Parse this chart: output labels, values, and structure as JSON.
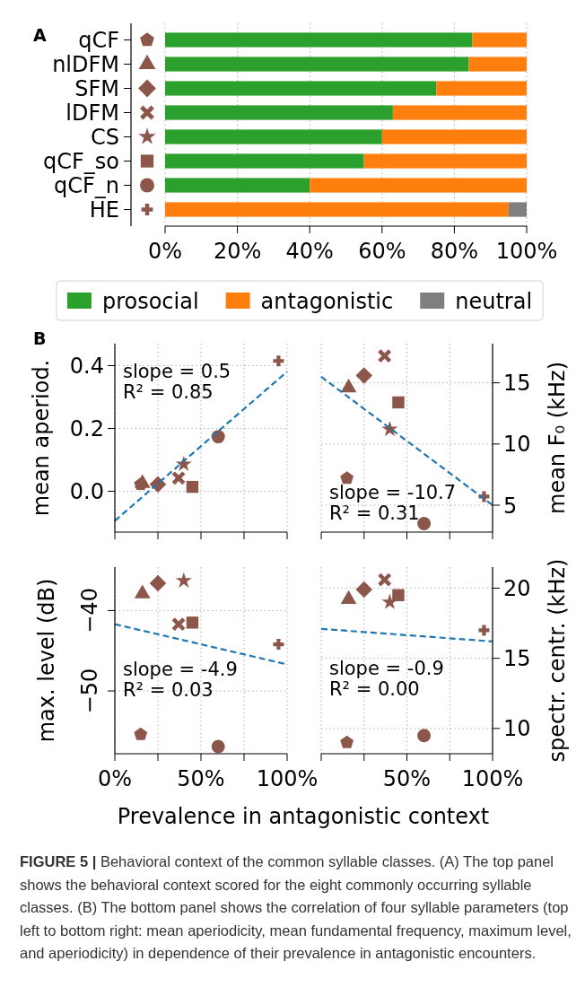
{
  "chart_data": [
    {
      "type": "bar",
      "orientation": "horizontal",
      "stacked": true,
      "categories": [
        "qCF",
        "nlDFM",
        "SFM",
        "lDFM",
        "CS",
        "qCF_so",
        "qCF_n",
        "HE"
      ],
      "series": [
        {
          "name": "prosocial",
          "color": "#2ca02c",
          "values": [
            85,
            84,
            75,
            63,
            60,
            55,
            40,
            0
          ]
        },
        {
          "name": "antagonistic",
          "color": "#ff7f0e",
          "values": [
            15,
            16,
            25,
            37,
            40,
            45,
            60,
            95
          ]
        },
        {
          "name": "neutral",
          "color": "#7f7f7f",
          "values": [
            0,
            0,
            0,
            0,
            0,
            0,
            0,
            5
          ]
        }
      ],
      "xlim": [
        0,
        100
      ],
      "xticks": [
        {
          "value": 0,
          "label": "0%"
        },
        {
          "value": 20,
          "label": "20%"
        },
        {
          "value": 40,
          "label": "40%"
        },
        {
          "value": 60,
          "label": "60%"
        },
        {
          "value": 80,
          "label": "80%"
        },
        {
          "value": 100,
          "label": "100%"
        }
      ],
      "grid": "x",
      "legend": "bottom",
      "annotations": [
        "A"
      ]
    },
    {
      "type": "scatter",
      "xlim": [
        0,
        100
      ],
      "xticks": [
        {
          "value": 0,
          "label": null
        },
        {
          "value": 25,
          "label": null
        },
        {
          "value": 50,
          "label": null
        },
        {
          "value": 75,
          "label": null
        },
        {
          "value": 100,
          "label": null
        }
      ],
      "ylim": [
        -0.13,
        0.47
      ],
      "yticks": [
        {
          "value": 0,
          "label": "0.0"
        },
        {
          "value": 0.2,
          "label": "0.2"
        },
        {
          "value": 0.4,
          "label": "0.4"
        }
      ],
      "ylabel": "mean aperiod.",
      "tick_labels": "y",
      "grid": true,
      "series": [
        {
          "color": "#8c564b",
          "x": [
            15
          ],
          "values": [
            0.022
          ]
        },
        {
          "color": "#8c564b",
          "marker": "triangle",
          "x": [
            16
          ],
          "values": [
            0.025
          ]
        },
        {
          "color": "#8c564b",
          "marker": "diamond",
          "x": [
            25
          ],
          "values": [
            0.022
          ]
        },
        {
          "color": "#8c564b",
          "marker": "x",
          "x": [
            37
          ],
          "values": [
            0.042
          ]
        },
        {
          "color": "#8c564b",
          "marker": "star",
          "x": [
            40
          ],
          "values": [
            0.086
          ]
        },
        {
          "color": "#8c564b",
          "marker": "square",
          "x": [
            45
          ],
          "values": [
            0.014
          ]
        },
        {
          "color": "#8c564b",
          "marker": "circle",
          "x": [
            60
          ],
          "values": [
            0.174
          ]
        },
        {
          "color": "#8c564b",
          "marker": "plus",
          "x": [
            95
          ],
          "values": [
            0.415
          ]
        },
        {
          "type": "line",
          "color": "#1f77b4",
          "line_style": "dashed",
          "x": [
            0,
            100
          ],
          "values": [
            -0.094,
            0.381
          ]
        }
      ],
      "annotations": [
        "B",
        "slope = 0.5",
        "R² = 0.85"
      ]
    },
    {
      "type": "scatter",
      "xlim": [
        0,
        100
      ],
      "xticks": [
        {
          "value": 0,
          "label": null
        },
        {
          "value": 25,
          "label": null
        },
        {
          "value": 50,
          "label": null
        },
        {
          "value": 75,
          "label": null
        },
        {
          "value": 100,
          "label": null
        }
      ],
      "y2lim": [
        2.8,
        18.2
      ],
      "y2ticks": [
        5,
        10,
        15
      ],
      "y2label": "mean F₀ (kHz)",
      "tick_labels": "y",
      "grid": true,
      "series": [
        {
          "color": "#8c564b",
          "axis": "y2",
          "x": [
            15
          ],
          "values": [
            7.2
          ]
        },
        {
          "color": "#8c564b",
          "marker": "triangle",
          "axis": "y2",
          "x": [
            16
          ],
          "values": [
            14.6
          ]
        },
        {
          "color": "#8c564b",
          "marker": "diamond",
          "axis": "y2",
          "x": [
            25
          ],
          "values": [
            15.6
          ]
        },
        {
          "color": "#8c564b",
          "marker": "x",
          "axis": "y2",
          "x": [
            37
          ],
          "values": [
            17.2
          ]
        },
        {
          "color": "#8c564b",
          "marker": "star",
          "axis": "y2",
          "x": [
            40
          ],
          "values": [
            11.2
          ]
        },
        {
          "color": "#8c564b",
          "marker": "square",
          "axis": "y2",
          "x": [
            45
          ],
          "values": [
            13.4
          ]
        },
        {
          "color": "#8c564b",
          "marker": "circle",
          "axis": "y2",
          "x": [
            60
          ],
          "values": [
            3.5
          ]
        },
        {
          "color": "#8c564b",
          "marker": "plus",
          "axis": "y2",
          "x": [
            95
          ],
          "values": [
            5.7
          ]
        },
        {
          "type": "line",
          "color": "#1f77b4",
          "line_style": "dashed",
          "axis": "y2",
          "x": [
            0,
            100
          ],
          "values": [
            15.5,
            5.0
          ]
        }
      ],
      "annotations": [
        "slope = -10.7",
        "R² = 0.31"
      ]
    },
    {
      "type": "scatter",
      "xlim": [
        0,
        100
      ],
      "xticks": [
        {
          "value": 0,
          "label": "0%"
        },
        {
          "value": 25,
          "label": null
        },
        {
          "value": 50,
          "label": "50%"
        },
        {
          "value": 75,
          "label": null
        },
        {
          "value": 100,
          "label": "100%"
        }
      ],
      "ylim": [
        -57.8,
        -34.6
      ],
      "yticks": [
        {
          "value": -50,
          "label": "−50"
        },
        {
          "value": -40,
          "label": "−40"
        }
      ],
      "ylabel": "max. level (dB)",
      "xlabel": "Prevalence in antagonistic context",
      "grid": true,
      "series": [
        {
          "color": "#8c564b",
          "x": [
            15
          ],
          "values": [
            -55.4
          ]
        },
        {
          "color": "#8c564b",
          "marker": "triangle",
          "x": [
            16
          ],
          "values": [
            -37.9
          ]
        },
        {
          "color": "#8c564b",
          "marker": "diamond",
          "x": [
            25
          ],
          "values": [
            -36.6
          ]
        },
        {
          "color": "#8c564b",
          "marker": "x",
          "x": [
            37
          ],
          "values": [
            -41.7
          ]
        },
        {
          "color": "#8c564b",
          "marker": "star",
          "x": [
            40
          ],
          "values": [
            -36.3
          ]
        },
        {
          "color": "#8c564b",
          "marker": "square",
          "x": [
            45
          ],
          "values": [
            -41.5
          ]
        },
        {
          "color": "#8c564b",
          "marker": "circle",
          "x": [
            60
          ],
          "values": [
            -56.9
          ]
        },
        {
          "color": "#8c564b",
          "marker": "plus",
          "x": [
            95
          ],
          "values": [
            -44.2
          ]
        },
        {
          "type": "line",
          "color": "#1f77b4",
          "line_style": "dashed",
          "x": [
            0,
            100
          ],
          "values": [
            -41.7,
            -46.7
          ]
        }
      ],
      "annotations": [
        "slope = -4.9",
        "R² = 0.03"
      ]
    },
    {
      "type": "scatter",
      "xlim": [
        0,
        100
      ],
      "xticks": [
        {
          "value": 0,
          "label": null
        },
        {
          "value": 25,
          "label": null
        },
        {
          "value": 50,
          "label": "50%"
        },
        {
          "value": 75,
          "label": null
        },
        {
          "value": 100,
          "label": "100%"
        }
      ],
      "y2lim": [
        8.2,
        21.5
      ],
      "y2ticks": [
        10,
        15,
        20
      ],
      "y2label": "spectr. centr. (kHz)",
      "grid": true,
      "series": [
        {
          "color": "#8c564b",
          "axis": "y2",
          "x": [
            15
          ],
          "values": [
            9.0
          ]
        },
        {
          "color": "#8c564b",
          "marker": "triangle",
          "axis": "y2",
          "x": [
            16
          ],
          "values": [
            19.2
          ]
        },
        {
          "color": "#8c564b",
          "marker": "diamond",
          "axis": "y2",
          "x": [
            25
          ],
          "values": [
            19.9
          ]
        },
        {
          "color": "#8c564b",
          "marker": "x",
          "axis": "y2",
          "x": [
            37
          ],
          "values": [
            20.6
          ]
        },
        {
          "color": "#8c564b",
          "marker": "star",
          "axis": "y2",
          "x": [
            40
          ],
          "values": [
            19.0
          ]
        },
        {
          "color": "#8c564b",
          "marker": "square",
          "axis": "y2",
          "x": [
            45
          ],
          "values": [
            19.5
          ]
        },
        {
          "color": "#8c564b",
          "marker": "circle",
          "axis": "y2",
          "x": [
            60
          ],
          "values": [
            9.5
          ]
        },
        {
          "color": "#8c564b",
          "marker": "plus",
          "axis": "y2",
          "x": [
            95
          ],
          "values": [
            17.0
          ]
        },
        {
          "type": "line",
          "color": "#1f77b4",
          "line_style": "dashed",
          "axis": "y2",
          "x": [
            0,
            100
          ],
          "values": [
            17.1,
            16.2
          ]
        }
      ],
      "annotations": [
        "slope = -0.9",
        "R² = 0.00"
      ]
    },
    {
      "type": "other",
      "annotations": [
        "FIGURE 5 |",
        "Behavioral context of the common syllable classes. (A) The top panel shows the behavioral context scored for the eight commonly occurring syllable classes. (B) The bottom panel shows the correlation of four syllable parameters (top left to bottom right: mean aperiodicity, mean fundamental frequency, maximum level, and aperiodicity) in dependence of their prevalence in antagonistic encounters."
      ]
    }
  ]
}
